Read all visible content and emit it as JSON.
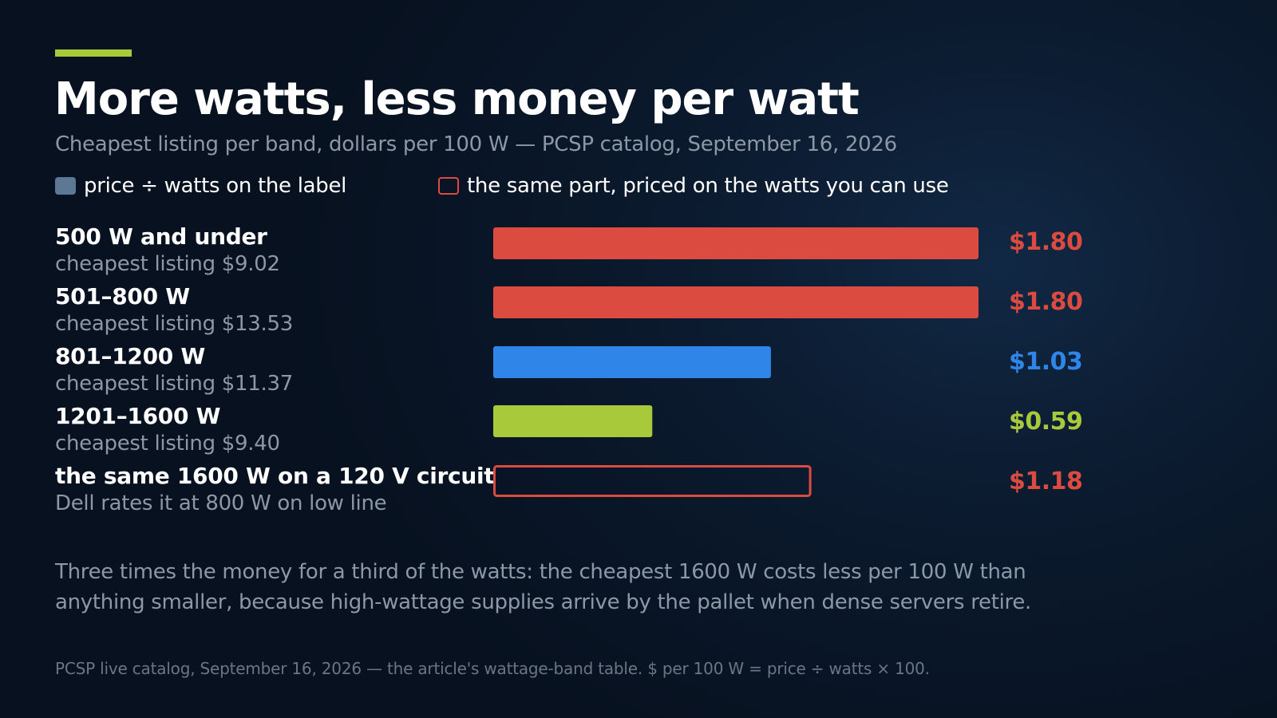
{
  "chart_data": {
    "type": "bar",
    "orientation": "horizontal",
    "title": "More watts, less money per watt",
    "subtitle": "Cheapest listing per band, dollars per 100 W — PCSP catalog, September 16, 2026",
    "legend": [
      {
        "label": "price ÷ watts on the label",
        "style": "filled",
        "color": "#5c7894"
      },
      {
        "label": "the same part, priced on the watts you can use",
        "style": "outline",
        "color": "#dc4b40"
      }
    ],
    "legend_placement": "top-left",
    "xlim": [
      0,
      2.0
    ],
    "grid": false,
    "bars": [
      {
        "name": "500 W and under",
        "sub": "cheapest listing $9.02",
        "value": 1.8,
        "value_label": "$1.80",
        "color": "#dc4b40",
        "style": "filled"
      },
      {
        "name": "501–800 W",
        "sub": "cheapest listing $13.53",
        "value": 1.8,
        "value_label": "$1.80",
        "color": "#dc4b40",
        "style": "filled"
      },
      {
        "name": "801–1200 W",
        "sub": "cheapest listing $11.37",
        "value": 1.03,
        "value_label": "$1.03",
        "color": "#2f86e8",
        "style": "filled"
      },
      {
        "name": "1201–1600 W",
        "sub": "cheapest listing $9.40",
        "value": 0.59,
        "value_label": "$0.59",
        "color": "#a8c93a",
        "style": "filled"
      },
      {
        "name": "the same 1600 W on a 120 V circuit",
        "sub": "Dell rates it at 800 W on low line",
        "value": 1.18,
        "value_label": "$1.18",
        "color": "#dc4b40",
        "style": "outline"
      }
    ]
  },
  "accent_color": "#a8c93a",
  "note": "Three times the money for a third of the watts: the cheapest 1600 W costs less per 100 W than anything smaller, because high-wattage supplies arrive by the pallet when dense servers retire.",
  "source": "PCSP live catalog, September 16, 2026 — the article's wattage-band table. $ per 100 W = price ÷ watts × 100."
}
